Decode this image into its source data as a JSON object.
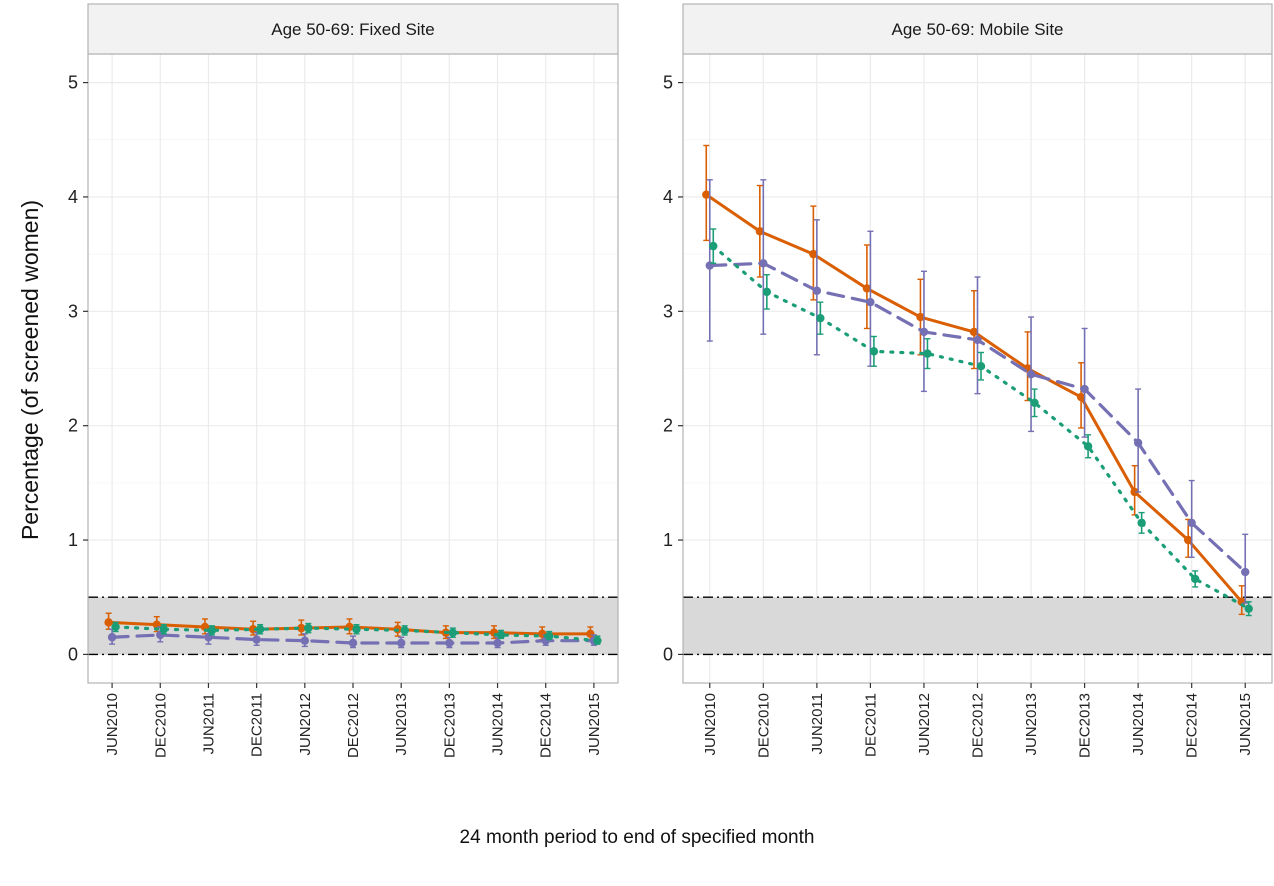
{
  "chart_data": {
    "type": "line",
    "ylabel": "Percentage (of screened women)",
    "xlabel": "24 month period to end of specified month",
    "categories": [
      "JUN2010",
      "DEC2010",
      "JUN2011",
      "DEC2011",
      "JUN2012",
      "DEC2012",
      "JUN2013",
      "DEC2013",
      "JUN2014",
      "DEC2014",
      "JUN2015"
    ],
    "yticks": [
      0,
      1,
      2,
      3,
      4,
      5
    ],
    "ylim": [
      -0.25,
      5.25
    ],
    "reference_band": [
      0,
      0.5
    ],
    "grid": true,
    "colors": {
      "orange": "#d95f02",
      "purple": "#7570b3",
      "green": "#1b9e77",
      "band": "#d9d9d9",
      "strip": "#f2f2f2"
    },
    "panels": [
      {
        "strip": "Age 50-69: Fixed Site",
        "series": [
          {
            "color": "#d95f02",
            "linestyle": "solid",
            "values": [
              0.28,
              0.26,
              0.24,
              0.22,
              0.23,
              0.24,
              0.22,
              0.19,
              0.19,
              0.18,
              0.18
            ],
            "lower": [
              0.22,
              0.2,
              0.18,
              0.17,
              0.17,
              0.18,
              0.16,
              0.14,
              0.14,
              0.13,
              0.13
            ],
            "upper": [
              0.36,
              0.33,
              0.31,
              0.29,
              0.3,
              0.31,
              0.28,
              0.25,
              0.25,
              0.24,
              0.24
            ]
          },
          {
            "color": "#7570b3",
            "linestyle": "dashed",
            "values": [
              0.15,
              0.17,
              0.15,
              0.13,
              0.12,
              0.1,
              0.1,
              0.1,
              0.1,
              0.12,
              0.12
            ],
            "lower": [
              0.09,
              0.11,
              0.09,
              0.08,
              0.07,
              0.06,
              0.06,
              0.06,
              0.06,
              0.08,
              0.08
            ],
            "upper": [
              0.22,
              0.24,
              0.22,
              0.19,
              0.18,
              0.16,
              0.15,
              0.15,
              0.15,
              0.17,
              0.17
            ]
          },
          {
            "color": "#1b9e77",
            "linestyle": "dotted",
            "values": [
              0.24,
              0.22,
              0.21,
              0.22,
              0.23,
              0.22,
              0.21,
              0.19,
              0.17,
              0.16,
              0.12
            ],
            "lower": [
              0.2,
              0.18,
              0.17,
              0.18,
              0.19,
              0.18,
              0.17,
              0.15,
              0.14,
              0.13,
              0.09
            ],
            "upper": [
              0.28,
              0.26,
              0.25,
              0.26,
              0.27,
              0.26,
              0.25,
              0.23,
              0.21,
              0.2,
              0.16
            ]
          }
        ]
      },
      {
        "strip": "Age 50-69: Mobile Site",
        "series": [
          {
            "color": "#d95f02",
            "linestyle": "solid",
            "values": [
              4.02,
              3.7,
              3.5,
              3.2,
              2.95,
              2.82,
              2.5,
              2.25,
              1.42,
              1.0,
              0.46
            ],
            "lower": [
              3.62,
              3.3,
              3.1,
              2.85,
              2.62,
              2.5,
              2.22,
              1.98,
              1.22,
              0.85,
              0.35
            ],
            "upper": [
              4.45,
              4.1,
              3.92,
              3.58,
              3.28,
              3.18,
              2.82,
              2.55,
              1.65,
              1.18,
              0.6
            ]
          },
          {
            "color": "#7570b3",
            "linestyle": "dashed",
            "values": [
              3.4,
              3.42,
              3.18,
              3.08,
              2.82,
              2.75,
              2.45,
              2.32,
              1.85,
              1.15,
              0.72
            ],
            "lower": [
              2.74,
              2.8,
              2.62,
              2.52,
              2.3,
              2.28,
              1.95,
              1.9,
              1.42,
              0.85,
              0.45
            ],
            "upper": [
              4.15,
              4.15,
              3.8,
              3.7,
              3.35,
              3.3,
              2.95,
              2.85,
              2.32,
              1.52,
              1.05
            ]
          },
          {
            "color": "#1b9e77",
            "linestyle": "dotted",
            "values": [
              3.57,
              3.17,
              2.94,
              2.65,
              2.63,
              2.52,
              2.2,
              1.82,
              1.15,
              0.66,
              0.4
            ],
            "lower": [
              3.42,
              3.02,
              2.8,
              2.52,
              2.5,
              2.4,
              2.08,
              1.72,
              1.06,
              0.59,
              0.34
            ],
            "upper": [
              3.72,
              3.32,
              3.08,
              2.78,
              2.76,
              2.64,
              2.32,
              1.92,
              1.24,
              0.73,
              0.46
            ]
          }
        ]
      }
    ]
  }
}
